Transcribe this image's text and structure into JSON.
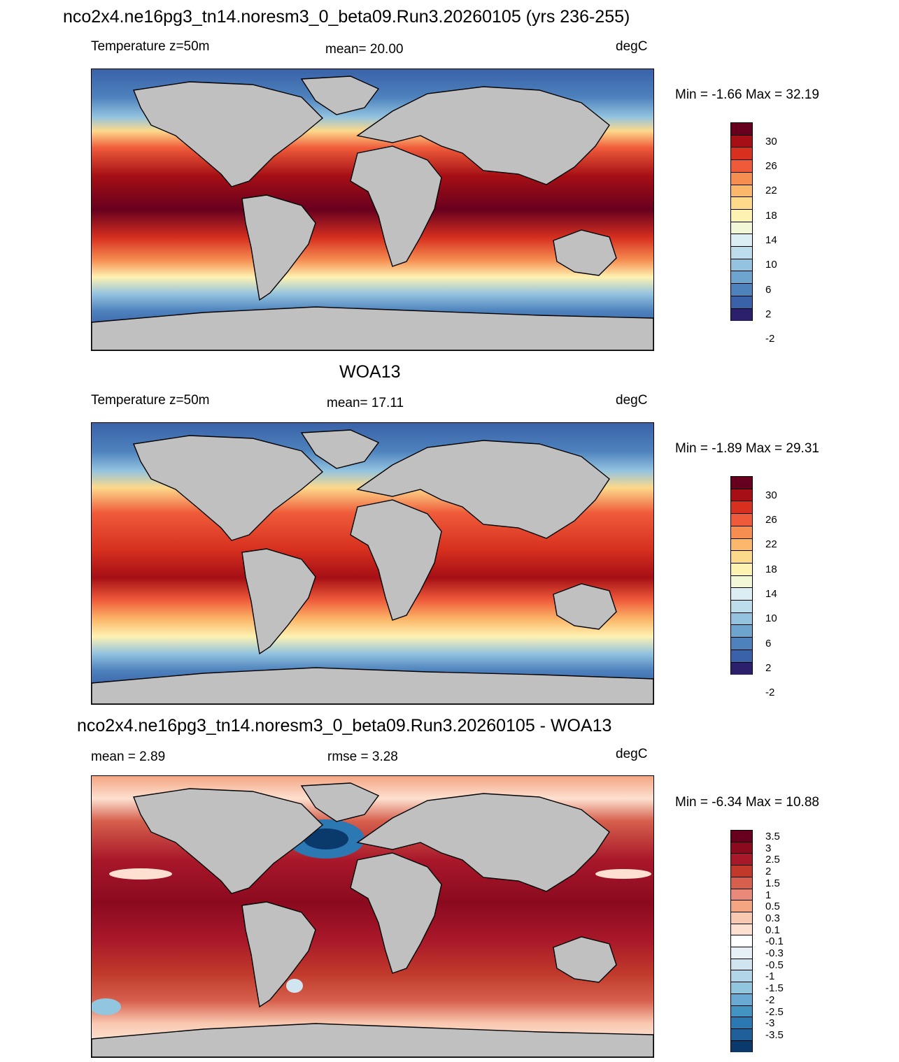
{
  "panels": [
    {
      "title": "nco2x4.ne16pg3_tn14.noresm3_0_beta09.Run3.20260105 (yrs 236-255)",
      "left_label": "Temperature z=50m",
      "center_label": "mean=  20.00",
      "right_label": "degC",
      "minmax": "Min =  -1.66 Max =  32.19",
      "colorbar": {
        "colors": [
          "#67001f",
          "#a50f15",
          "#d7301f",
          "#ef5b3a",
          "#f68e52",
          "#fcb86a",
          "#fdd98b",
          "#fef2b2",
          "#f2f7d8",
          "#dbeef4",
          "#bddcec",
          "#93c3df",
          "#6ea5cf",
          "#4d82bd",
          "#3a62a8",
          "#2c1f6b"
        ],
        "labels": [
          "30",
          "26",
          "22",
          "18",
          "14",
          "10",
          "6",
          "2",
          "-2"
        ]
      }
    },
    {
      "title": "WOA13",
      "left_label": "Temperature z=50m",
      "center_label": "mean=  17.11",
      "right_label": "degC",
      "minmax": "Min =  -1.89 Max =  29.31",
      "colorbar": {
        "colors": [
          "#67001f",
          "#a50f15",
          "#d7301f",
          "#ef5b3a",
          "#f68e52",
          "#fcb86a",
          "#fdd98b",
          "#fef2b2",
          "#f2f7d8",
          "#dbeef4",
          "#bddcec",
          "#93c3df",
          "#6ea5cf",
          "#4d82bd",
          "#3a62a8",
          "#2c1f6b"
        ],
        "labels": [
          "30",
          "26",
          "22",
          "18",
          "14",
          "10",
          "6",
          "2",
          "-2"
        ]
      }
    },
    {
      "title": "nco2x4.ne16pg3_tn14.noresm3_0_beta09.Run3.20260105 - WOA13",
      "left_label": "mean =   2.89",
      "center_label": "rmse =   3.28",
      "right_label": "degC",
      "minmax": "Min =  -6.34 Max =  10.88",
      "colorbar": {
        "colors": [
          "#67001f",
          "#8b0a1e",
          "#a8172a",
          "#c0392b",
          "#d6604d",
          "#e8897a",
          "#f4a582",
          "#f9c8b0",
          "#fde0d0",
          "#ffffff",
          "#e6f0f6",
          "#d1e5f0",
          "#b3d5e8",
          "#92c5de",
          "#6aa9d2",
          "#4393c3",
          "#2b78b3",
          "#1f5f9a",
          "#093a6b"
        ],
        "labels": [
          "3.5",
          "3",
          "2.5",
          "2",
          "1.5",
          "1",
          "0.5",
          "0.3",
          "0.1",
          "-0.1",
          "-0.3",
          "-0.5",
          "-1",
          "-1.5",
          "-2",
          "-2.5",
          "-3",
          "-3.5"
        ]
      }
    }
  ]
}
